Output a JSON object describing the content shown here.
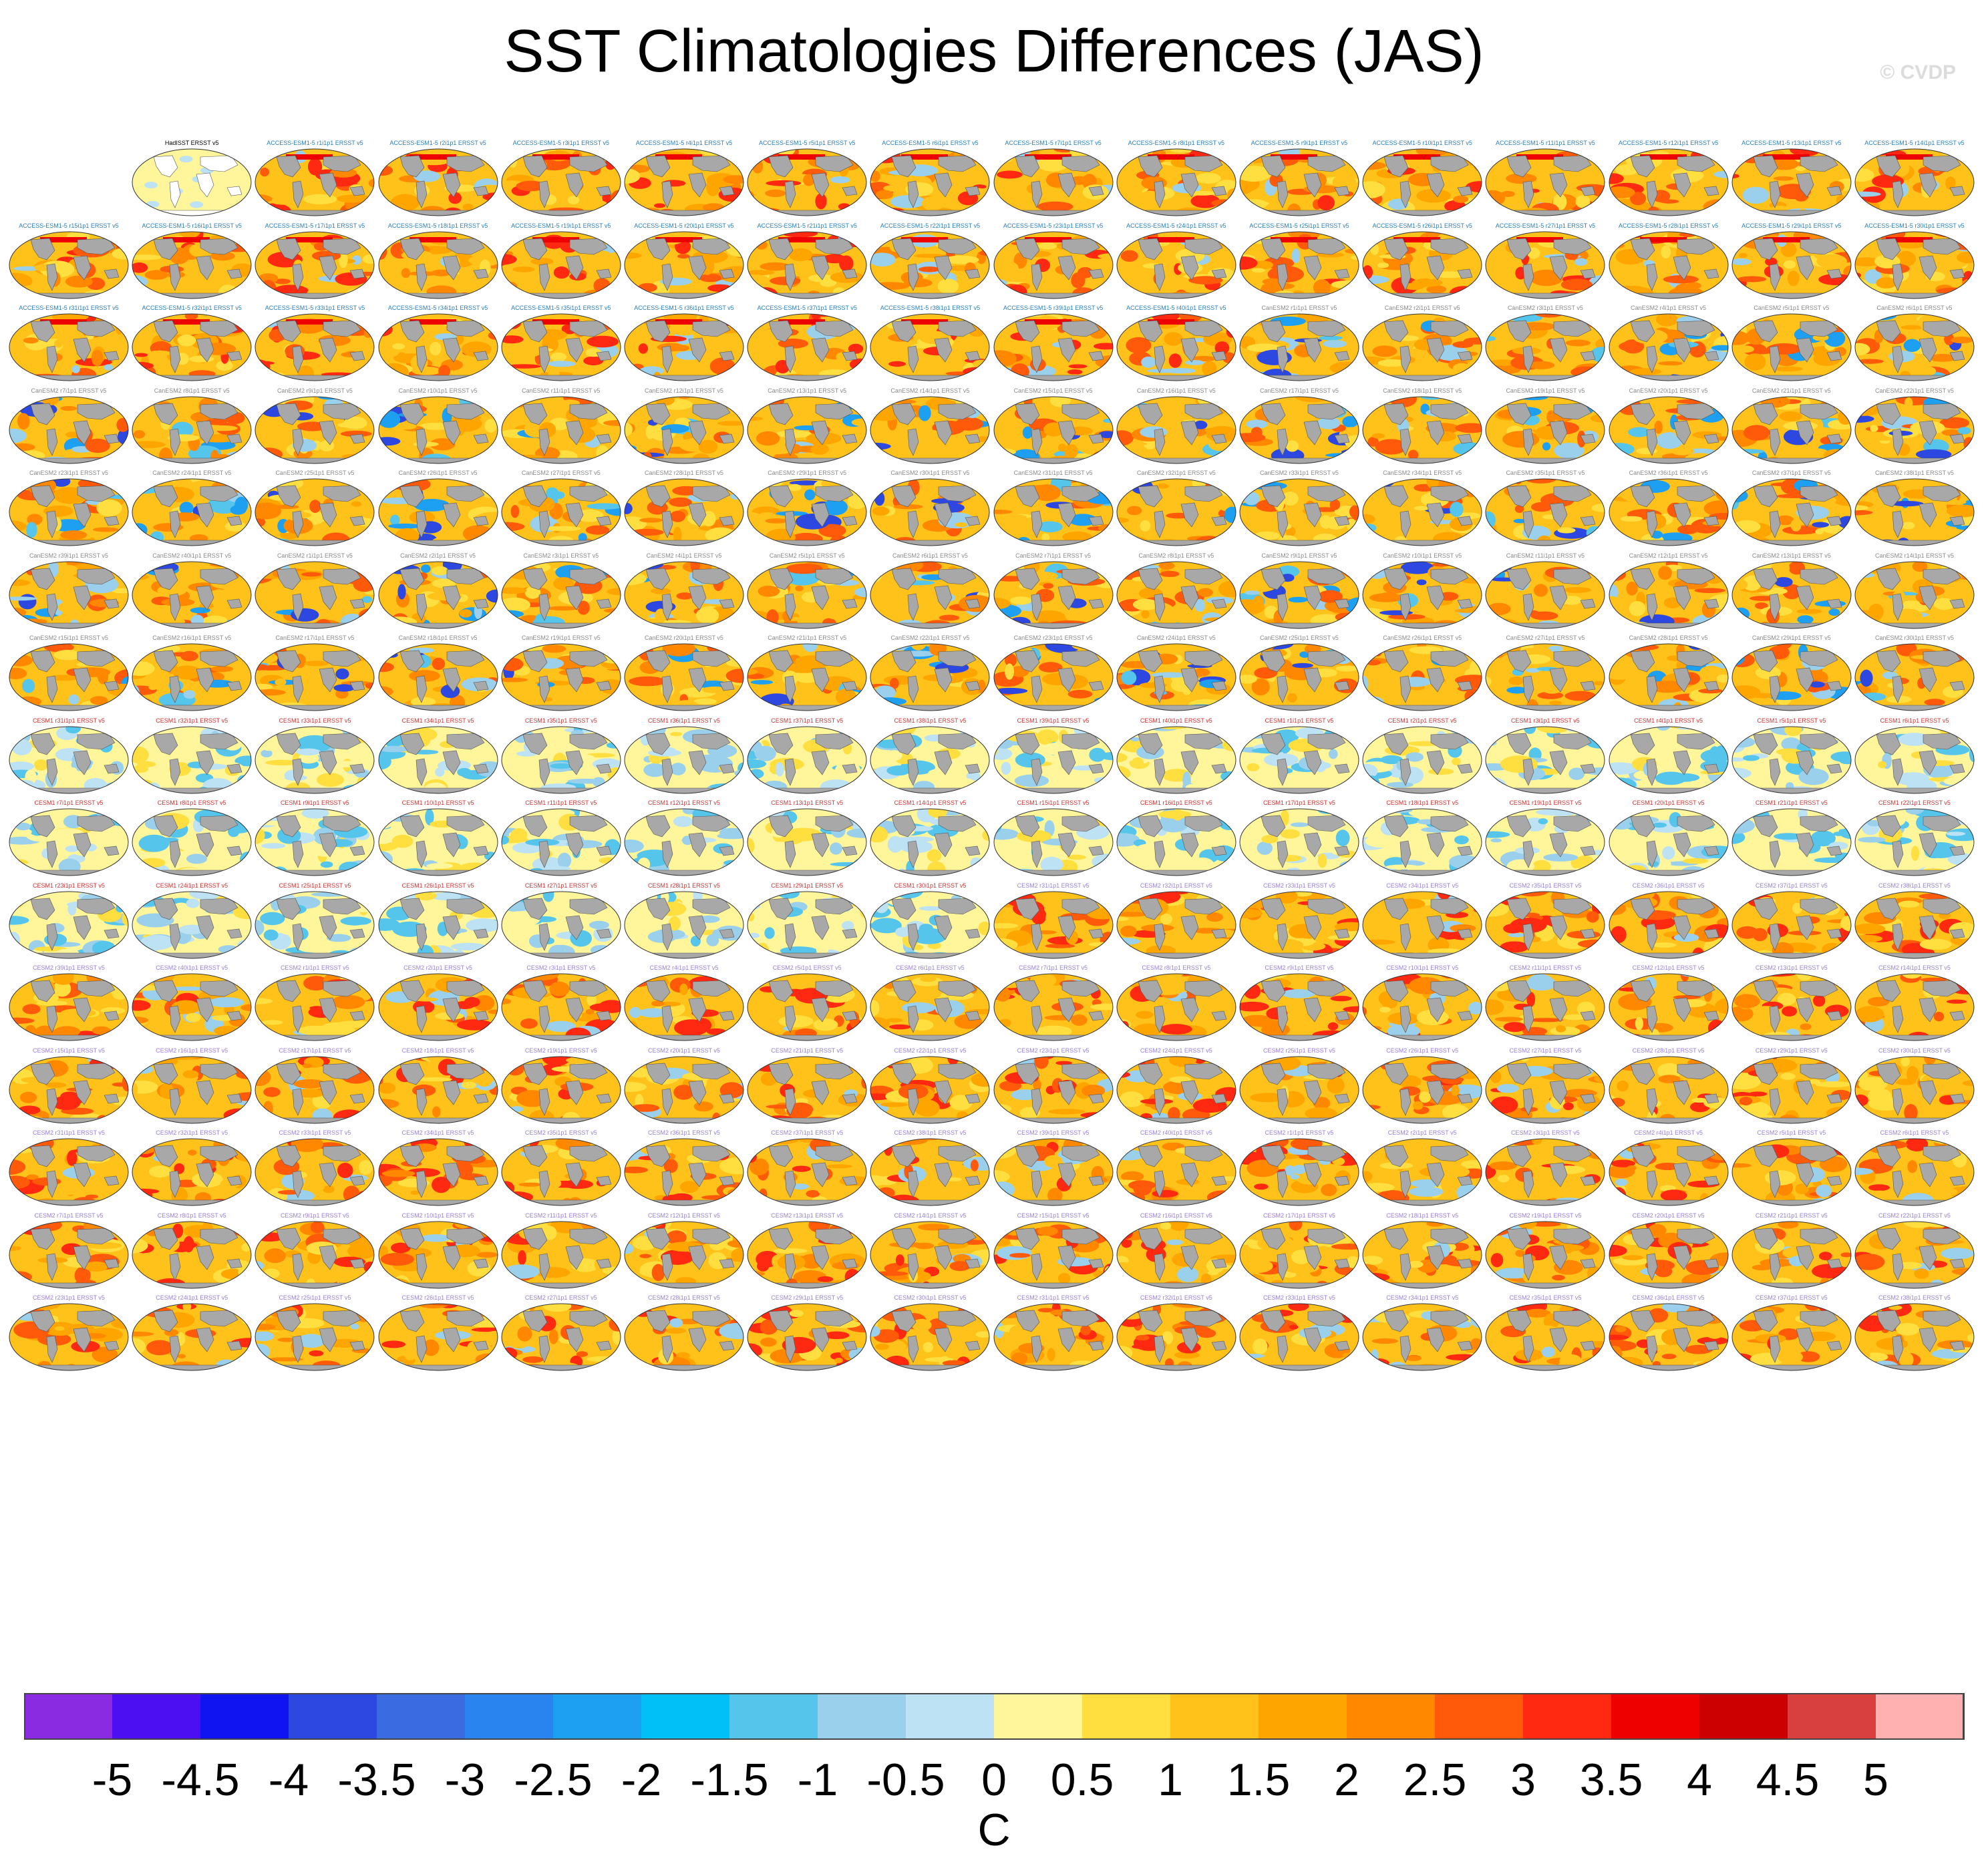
{
  "title": "SST Climatologies Differences (JAS)",
  "copyright": "© CVDP",
  "chart_data": {
    "type": "heatmap",
    "description_of_layout": "small-multiple global maps",
    "grid_rows": 15,
    "grid_cols": 16,
    "panel_count": 239,
    "reference_panel": "HadISST ERSST v5",
    "panel_groups": [
      {
        "model": "ACCESS-ESM1-5",
        "count": 40,
        "label_color": "#2a7fb8",
        "dominant_bias": "warm (~1 to 1.5 C), strong red in North Pacific"
      },
      {
        "model": "CanESM2",
        "count": 70,
        "label_color": "#8a8a8a",
        "dominant_bias": "warm with cool tropical Pacific (~-1 C)"
      },
      {
        "model": "CESM1",
        "count": 40,
        "label_color": "#cc3333",
        "dominant_bias": "near zero / weak mixed (~-0.5 to 0.5 C)"
      },
      {
        "model": "CESM2",
        "count": 88,
        "label_color": "#9a7fd6",
        "dominant_bias": "warm (~1 to 2 C)"
      }
    ],
    "colorbar": {
      "units": "C",
      "tick_labels": [
        "-5",
        "-4.5",
        "-4",
        "-3.5",
        "-3",
        "-2.5",
        "-2",
        "-1.5",
        "-1",
        "-0.5",
        "0",
        "0.5",
        "1",
        "1.5",
        "2",
        "2.5",
        "3",
        "3.5",
        "4",
        "4.5",
        "5"
      ],
      "colors": [
        "#8a2be2",
        "#4b0ff2",
        "#0f14f0",
        "#2c48e0",
        "#3a6be0",
        "#2984f0",
        "#1ea0f2",
        "#00c0f8",
        "#55c5ec",
        "#9ad0ec",
        "#bde2f4",
        "#fff59a",
        "#ffdf40",
        "#ffc21a",
        "#ffa500",
        "#ff8800",
        "#ff5a0a",
        "#ff2810",
        "#ee0000",
        "#cc0000",
        "#d84040",
        "#ffb0b0"
      ]
    }
  },
  "panel_label_suffix": "ERSST v5"
}
